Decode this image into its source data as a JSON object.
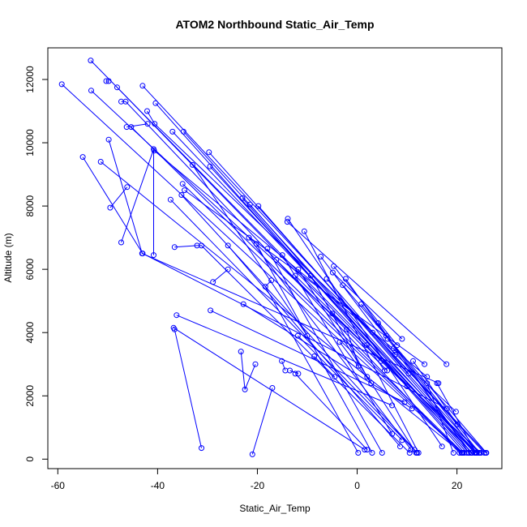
{
  "chart_data": {
    "type": "line",
    "title": "ATOM2 Northbound Static_Air_Temp",
    "xlabel": "Static_Air_Temp",
    "ylabel": "Altitude (m)",
    "xlim": [
      -62,
      29
    ],
    "ylim": [
      -300,
      13000
    ],
    "x_ticks": [
      -60,
      -40,
      -20,
      0,
      20
    ],
    "y_ticks": [
      0,
      2000,
      4000,
      6000,
      8000,
      10000,
      12000
    ],
    "grid": false,
    "legend": "none",
    "color": "#0000ff",
    "markers": "open-circle",
    "series": [
      {
        "x": [
          -53.4,
          23.8
        ],
        "y": [
          12600,
          200
        ]
      },
      {
        "x": [
          -59.2,
          21.0
        ],
        "y": [
          11850,
          200
        ]
      },
      {
        "x": [
          -53.3,
          24.8
        ],
        "y": [
          11650,
          200
        ]
      },
      {
        "x": [
          -49.8,
          -50.3
        ],
        "y": [
          11950,
          11950
        ]
      },
      {
        "x": [
          -48.1,
          23.0
        ],
        "y": [
          11750,
          200
        ]
      },
      {
        "x": [
          -47.3,
          -46.4,
          20.5
        ],
        "y": [
          11300,
          11300,
          200
        ]
      },
      {
        "x": [
          -43.0,
          25.5
        ],
        "y": [
          11800,
          200
        ]
      },
      {
        "x": [
          -40.4,
          22.0
        ],
        "y": [
          11250,
          200
        ]
      },
      {
        "x": [
          -42.1,
          -40.6,
          19.8
        ],
        "y": [
          11000,
          10600,
          1500
        ]
      },
      {
        "x": [
          -45.3,
          21.2
        ],
        "y": [
          10500,
          200
        ]
      },
      {
        "x": [
          -46.2,
          -42.0
        ],
        "y": [
          10500,
          10600
        ]
      },
      {
        "x": [
          -37.0,
          24.0
        ],
        "y": [
          10350,
          200
        ]
      },
      {
        "x": [
          -34.8,
          23.5
        ],
        "y": [
          10350,
          200
        ]
      },
      {
        "x": [
          -29.7,
          24.4
        ],
        "y": [
          9700,
          200
        ]
      },
      {
        "x": [
          -29.5,
          23.0
        ],
        "y": [
          9250,
          200
        ]
      },
      {
        "x": [
          -51.4,
          20.9
        ],
        "y": [
          9400,
          200
        ]
      },
      {
        "x": [
          -55.0,
          -43.0,
          18.0
        ],
        "y": [
          9550,
          6500,
          1600
        ]
      },
      {
        "x": [
          -49.8,
          -43.1,
          16.3
        ],
        "y": [
          10100,
          6500,
          2400
        ]
      },
      {
        "x": [
          -40.7,
          14.0
        ],
        "y": [
          9750,
          2600
        ]
      },
      {
        "x": [
          -46.1,
          -49.5
        ],
        "y": [
          8600,
          7950
        ]
      },
      {
        "x": [
          -47.3,
          -40.8,
          -40.8
        ],
        "y": [
          6850,
          9800,
          6450
        ]
      },
      {
        "x": [
          -35.0,
          21.0
        ],
        "y": [
          8700,
          200
        ]
      },
      {
        "x": [
          -34.6,
          13.5
        ],
        "y": [
          8500,
          3000
        ]
      },
      {
        "x": [
          -37.4,
          12.0
        ],
        "y": [
          8200,
          200
        ]
      },
      {
        "x": [
          -35.2,
          11.5
        ],
        "y": [
          8350,
          300
        ]
      },
      {
        "x": [
          -23.0,
          21.5
        ],
        "y": [
          8250,
          200
        ]
      },
      {
        "x": [
          -21.5,
          22.4
        ],
        "y": [
          8050,
          200
        ]
      },
      {
        "x": [
          -19.8,
          23.7
        ],
        "y": [
          8000,
          200
        ]
      },
      {
        "x": [
          -13.9,
          17.0
        ],
        "y": [
          7600,
          400
        ]
      },
      {
        "x": [
          -10.6,
          12.3
        ],
        "y": [
          7200,
          200
        ]
      },
      {
        "x": [
          -7.3,
          7.6
        ],
        "y": [
          6400,
          3300
        ]
      },
      {
        "x": [
          -6.1,
          10.3
        ],
        "y": [
          5700,
          2700
        ]
      },
      {
        "x": [
          -4.7,
          8.0
        ],
        "y": [
          6100,
          3600
        ]
      },
      {
        "x": [
          -2.3,
          5.8
        ],
        "y": [
          5700,
          3900
        ]
      },
      {
        "x": [
          -4.9,
          9.0
        ],
        "y": [
          5900,
          3800
        ]
      },
      {
        "x": [
          -11.8,
          11.8
        ],
        "y": [
          6000,
          200
        ]
      },
      {
        "x": [
          -21.7,
          10.8
        ],
        "y": [
          7000,
          300
        ]
      },
      {
        "x": [
          -36.6,
          -32.1,
          -31.2,
          10.5
        ],
        "y": [
          6700,
          6750,
          6750,
          200
        ]
      },
      {
        "x": [
          -25.9,
          8.6
        ],
        "y": [
          6750,
          400
        ]
      },
      {
        "x": [
          -18.0,
          5.0
        ],
        "y": [
          6650,
          200
        ]
      },
      {
        "x": [
          -15.0,
          7.0
        ],
        "y": [
          6450,
          800
        ]
      },
      {
        "x": [
          -20.2,
          3.0
        ],
        "y": [
          6800,
          200
        ]
      },
      {
        "x": [
          -28.9,
          -25.9
        ],
        "y": [
          5600,
          6000
        ]
      },
      {
        "x": [
          -17.2,
          -18.4,
          0.2
        ],
        "y": [
          5650,
          5450,
          200
        ]
      },
      {
        "x": [
          -12.4,
          4.8
        ],
        "y": [
          5800,
          3100
        ]
      },
      {
        "x": [
          -9.3,
          2.0
        ],
        "y": [
          5800,
          2600
        ]
      },
      {
        "x": [
          -5.0,
          10.0
        ],
        "y": [
          4600,
          2300
        ]
      },
      {
        "x": [
          -29.4,
          9.5
        ],
        "y": [
          4700,
          1800
        ]
      },
      {
        "x": [
          -22.8,
          11.0
        ],
        "y": [
          4900,
          1600
        ]
      },
      {
        "x": [
          -36.2,
          7.0
        ],
        "y": [
          4550,
          1700
        ]
      },
      {
        "x": [
          -36.8,
          1.5
        ],
        "y": [
          4150,
          300
        ]
      },
      {
        "x": [
          -11.9,
          9.0
        ],
        "y": [
          3900,
          600
        ]
      },
      {
        "x": [
          -8.6,
          -4.5
        ],
        "y": [
          3250,
          2600
        ]
      },
      {
        "x": [
          -2.1,
          0.3
        ],
        "y": [
          4100,
          2950
        ]
      },
      {
        "x": [
          1.9,
          5.5
        ],
        "y": [
          3600,
          2800
        ]
      },
      {
        "x": [
          -3.5,
          2.8
        ],
        "y": [
          3700,
          2400
        ]
      },
      {
        "x": [
          -15.1,
          -14.4
        ],
        "y": [
          3100,
          2800
        ]
      },
      {
        "x": [
          -12.4,
          2.0
        ],
        "y": [
          2700,
          300
        ]
      },
      {
        "x": [
          -13.5,
          -11.8
        ],
        "y": [
          2800,
          2700
        ]
      },
      {
        "x": [
          -23.3,
          -22.5,
          -20.4
        ],
        "y": [
          3400,
          2200,
          3000
        ]
      },
      {
        "x": [
          -36.6,
          -31.2
        ],
        "y": [
          4100,
          350
        ]
      },
      {
        "x": [
          -21.0,
          -17.0
        ],
        "y": [
          150,
          2250
        ]
      },
      {
        "x": [
          -33.0,
          -10.0
        ],
        "y": [
          9300,
          3900
        ]
      },
      {
        "x": [
          -16.2,
          6.0
        ],
        "y": [
          6300,
          2800
        ]
      },
      {
        "x": [
          -2.9,
          25.9
        ],
        "y": [
          5500,
          200
        ]
      },
      {
        "x": [
          0.8,
          24.5
        ],
        "y": [
          4900,
          200
        ]
      },
      {
        "x": [
          4.2,
          22.4
        ],
        "y": [
          4300,
          200
        ]
      },
      {
        "x": [
          3.1,
          25.8
        ],
        "y": [
          4000,
          200
        ]
      },
      {
        "x": [
          6.1,
          24.0
        ],
        "y": [
          3800,
          200
        ]
      },
      {
        "x": [
          7.3,
          22.8
        ],
        "y": [
          3500,
          200
        ]
      },
      {
        "x": [
          14.0,
          19.3
        ],
        "y": [
          2400,
          200
        ]
      },
      {
        "x": [
          16.0,
          23.8
        ],
        "y": [
          2400,
          200
        ]
      },
      {
        "x": [
          11.2,
          20.1
        ],
        "y": [
          3100,
          1100
        ]
      },
      {
        "x": [
          -14.0,
          17.9
        ],
        "y": [
          7500,
          3000
        ]
      }
    ]
  }
}
